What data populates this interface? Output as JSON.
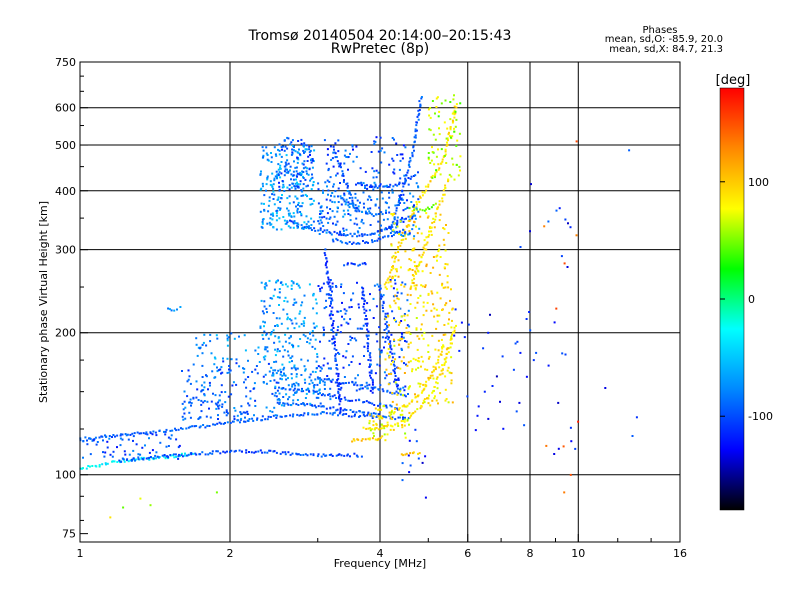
{
  "chart_data": {
    "type": "scatter",
    "title": "Tromsø 20140504 20:14:00–20:15:43",
    "subtitle": "RwPretec (8p)",
    "xlabel": "Frequency [MHz]",
    "ylabel": "Stationary phase Virtual Height [km]",
    "x_scale": "log",
    "y_scale": "log",
    "xlim": [
      1,
      16
    ],
    "ylim": [
      72,
      750
    ],
    "x_ticks": [
      1,
      2,
      4,
      6,
      8,
      10,
      16
    ],
    "x_tick_labels": [
      "1",
      "2",
      "4",
      "6",
      "8",
      "10",
      "16"
    ],
    "x_gridlines": [
      2,
      4,
      6,
      8,
      10
    ],
    "y_ticks": [
      75,
      100,
      200,
      300,
      400,
      500,
      600,
      750
    ],
    "y_tick_labels": [
      "75",
      "100",
      "200",
      "300",
      "400",
      "500",
      "600",
      "750"
    ],
    "y_gridlines": [
      100,
      200,
      300,
      400,
      500,
      600
    ],
    "grid": true,
    "stats": {
      "heading": "Phases",
      "line_o": "mean, sd,O: -85.9, 20.0",
      "line_x": "mean, sd,X: 84.7, 21.3"
    },
    "colorbar": {
      "label": "[deg]",
      "range": [
        -180,
        180
      ],
      "ticks": [
        100,
        0,
        -100
      ],
      "tick_labels": [
        "100",
        "0",
        "-100"
      ],
      "colors": [
        "#ff0000",
        "#ff8800",
        "#ffff00",
        "#00ff00",
        "#00ffff",
        "#0088ff",
        "#0000ff",
        "#000000"
      ]
    },
    "series": [
      {
        "kind": "trace",
        "phase": -95,
        "points": [
          [
            1.0,
            118
          ],
          [
            1.1,
            120
          ],
          [
            1.2,
            121
          ],
          [
            1.35,
            123
          ],
          [
            1.5,
            124
          ],
          [
            1.7,
            126
          ],
          [
            1.9,
            128
          ],
          [
            2.1,
            130
          ],
          [
            2.3,
            131
          ],
          [
            2.5,
            133
          ],
          [
            2.8,
            134
          ],
          [
            3.1,
            135
          ],
          [
            3.4,
            134
          ],
          [
            3.7,
            133
          ],
          [
            4.0,
            132
          ]
        ]
      },
      {
        "kind": "trace",
        "phase": -30,
        "points": [
          [
            1.0,
            103
          ],
          [
            1.1,
            105
          ],
          [
            1.2,
            107
          ],
          [
            1.35,
            108
          ],
          [
            1.5,
            109
          ],
          [
            1.7,
            111
          ]
        ]
      },
      {
        "kind": "trace",
        "phase": -100,
        "points": [
          [
            1.2,
            107
          ],
          [
            1.4,
            109
          ],
          [
            1.6,
            110
          ],
          [
            1.8,
            111
          ],
          [
            2.0,
            112
          ],
          [
            2.3,
            112
          ],
          [
            2.6,
            111
          ],
          [
            2.9,
            110
          ],
          [
            3.2,
            110
          ],
          [
            3.5,
            110
          ],
          [
            3.7,
            110
          ]
        ]
      },
      {
        "kind": "trace",
        "phase": 100,
        "points": [
          [
            3.5,
            118
          ],
          [
            3.7,
            119
          ],
          [
            3.9,
            119
          ],
          [
            4.1,
            120
          ]
        ]
      },
      {
        "kind": "trace",
        "phase": 100,
        "points": [
          [
            4.4,
            110
          ],
          [
            4.55,
            111
          ],
          [
            4.7,
            111
          ],
          [
            4.85,
            110
          ]
        ]
      },
      {
        "kind": "trace",
        "phase": -95,
        "points": [
          [
            2.5,
            142
          ],
          [
            2.8,
            141
          ],
          [
            3.1,
            139
          ],
          [
            3.4,
            137
          ],
          [
            3.7,
            136
          ],
          [
            4.0,
            134
          ],
          [
            4.3,
            132
          ],
          [
            4.6,
            131
          ]
        ]
      },
      {
        "kind": "trace",
        "phase": -100,
        "points": [
          [
            2.6,
            152
          ],
          [
            2.9,
            150
          ],
          [
            3.2,
            147
          ],
          [
            3.5,
            144
          ],
          [
            3.8,
            142
          ],
          [
            4.1,
            140
          ],
          [
            4.4,
            138
          ]
        ]
      },
      {
        "kind": "trace",
        "phase": -95,
        "points": [
          [
            3.0,
            160
          ],
          [
            3.4,
            157
          ],
          [
            3.8,
            154
          ],
          [
            4.2,
            150
          ],
          [
            4.6,
            147
          ]
        ]
      },
      {
        "kind": "trace",
        "phase": 85,
        "points": [
          [
            3.7,
            126
          ],
          [
            3.9,
            125
          ],
          [
            4.2,
            127
          ],
          [
            4.5,
            130
          ],
          [
            4.8,
            138
          ],
          [
            5.1,
            150
          ],
          [
            5.3,
            165
          ],
          [
            5.5,
            185
          ],
          [
            5.7,
            210
          ]
        ]
      },
      {
        "kind": "trace",
        "phase": 90,
        "points": [
          [
            4.2,
            135
          ],
          [
            4.5,
            140
          ],
          [
            4.8,
            148
          ],
          [
            5.0,
            158
          ],
          [
            5.2,
            170
          ],
          [
            5.4,
            190
          ]
        ]
      },
      {
        "kind": "trace",
        "phase": 90,
        "points": [
          [
            4.1,
            250
          ],
          [
            4.2,
            270
          ],
          [
            4.35,
            300
          ],
          [
            4.5,
            330
          ],
          [
            4.65,
            360
          ],
          [
            4.8,
            385
          ],
          [
            5.0,
            410
          ],
          [
            5.2,
            440
          ],
          [
            5.4,
            480
          ],
          [
            5.5,
            520
          ],
          [
            5.6,
            560
          ],
          [
            5.7,
            620
          ]
        ]
      },
      {
        "kind": "trace",
        "phase": 85,
        "points": [
          [
            4.6,
            250
          ],
          [
            4.75,
            270
          ],
          [
            4.9,
            300
          ],
          [
            5.05,
            330
          ],
          [
            5.2,
            360
          ],
          [
            5.35,
            390
          ],
          [
            5.5,
            430
          ]
        ]
      },
      {
        "kind": "trace",
        "phase": 50,
        "points": [
          [
            4.6,
            370
          ],
          [
            4.75,
            365
          ],
          [
            4.9,
            362
          ],
          [
            5.05,
            368
          ],
          [
            5.2,
            380
          ]
        ]
      },
      {
        "kind": "trace",
        "phase": -100,
        "points": [
          [
            2.6,
            345
          ],
          [
            2.8,
            335
          ],
          [
            3.0,
            330
          ],
          [
            3.3,
            325
          ],
          [
            3.6,
            322
          ],
          [
            3.9,
            325
          ],
          [
            4.2,
            335
          ],
          [
            4.5,
            350
          ]
        ]
      },
      {
        "kind": "trace",
        "phase": -95,
        "points": [
          [
            3.2,
            315
          ],
          [
            3.5,
            310
          ],
          [
            3.8,
            312
          ],
          [
            4.1,
            318
          ],
          [
            4.4,
            330
          ]
        ]
      },
      {
        "kind": "trace",
        "phase": -100,
        "points": [
          [
            3.6,
            415
          ],
          [
            3.8,
            410
          ],
          [
            4.0,
            408
          ],
          [
            4.2,
            410
          ],
          [
            4.4,
            415
          ],
          [
            4.6,
            425
          ],
          [
            4.8,
            440
          ]
        ]
      },
      {
        "kind": "trace",
        "phase": -85,
        "points": [
          [
            3.3,
            390
          ],
          [
            3.5,
            375
          ],
          [
            3.7,
            360
          ],
          [
            3.9,
            355
          ],
          [
            4.1,
            360
          ]
        ]
      },
      {
        "kind": "trace",
        "phase": -95,
        "points": [
          [
            3.2,
            500
          ],
          [
            3.3,
            460
          ],
          [
            3.4,
            420
          ],
          [
            3.5,
            385
          ],
          [
            3.6,
            360
          ]
        ]
      },
      {
        "kind": "trace",
        "phase": -95,
        "points": [
          [
            4.2,
            330
          ],
          [
            4.3,
            360
          ],
          [
            4.4,
            390
          ],
          [
            4.5,
            420
          ],
          [
            4.6,
            460
          ],
          [
            4.7,
            510
          ],
          [
            4.75,
            560
          ],
          [
            4.8,
            600
          ],
          [
            4.85,
            640
          ]
        ]
      },
      {
        "kind": "trace",
        "phase": -110,
        "points": [
          [
            3.1,
            300
          ],
          [
            3.12,
            280
          ],
          [
            3.15,
            260
          ],
          [
            3.18,
            240
          ],
          [
            3.2,
            220
          ],
          [
            3.22,
            200
          ],
          [
            3.25,
            185
          ],
          [
            3.28,
            170
          ],
          [
            3.3,
            155
          ],
          [
            3.32,
            145
          ],
          [
            3.34,
            135
          ]
        ]
      },
      {
        "kind": "trace",
        "phase": -110,
        "points": [
          [
            3.7,
            250
          ],
          [
            3.72,
            230
          ],
          [
            3.75,
            215
          ],
          [
            3.78,
            200
          ],
          [
            3.8,
            185
          ],
          [
            3.82,
            170
          ],
          [
            3.85,
            158
          ],
          [
            3.88,
            148
          ]
        ]
      },
      {
        "kind": "trace",
        "phase": -105,
        "points": [
          [
            4.0,
            250
          ],
          [
            4.05,
            230
          ],
          [
            4.1,
            215
          ],
          [
            4.15,
            200
          ],
          [
            4.2,
            185
          ],
          [
            4.25,
            172
          ],
          [
            4.3,
            160
          ],
          [
            4.35,
            150
          ]
        ]
      },
      {
        "kind": "trace",
        "phase": -105,
        "points": [
          [
            3.4,
            280
          ],
          [
            3.6,
            278
          ],
          [
            3.8,
            282
          ]
        ]
      },
      {
        "kind": "trace",
        "phase": -75,
        "points": [
          [
            1.5,
            225
          ],
          [
            1.55,
            224
          ],
          [
            1.6,
            226
          ]
        ]
      },
      {
        "kind": "cloud",
        "phase": -70,
        "x": [
          2.3,
          2.95
        ],
        "y": [
          330,
          500
        ],
        "n": 240
      },
      {
        "kind": "cloud",
        "phase": -95,
        "x": [
          2.5,
          2.95
        ],
        "y": [
          400,
          520
        ],
        "n": 90
      },
      {
        "kind": "cloud",
        "phase": -90,
        "x": [
          3.0,
          4.8
        ],
        "y": [
          320,
          420
        ],
        "n": 220
      },
      {
        "kind": "cloud",
        "phase": -100,
        "x": [
          3.1,
          4.5
        ],
        "y": [
          420,
          520
        ],
        "n": 70
      },
      {
        "kind": "cloud",
        "phase": -70,
        "x": [
          2.3,
          3.0
        ],
        "y": [
          170,
          260
        ],
        "n": 160
      },
      {
        "kind": "cloud",
        "phase": -100,
        "x": [
          3.0,
          4.6
        ],
        "y": [
          150,
          260
        ],
        "n": 200
      },
      {
        "kind": "cloud",
        "phase": -90,
        "x": [
          1.6,
          2.5
        ],
        "y": [
          130,
          175
        ],
        "n": 170
      },
      {
        "kind": "cloud",
        "phase": -75,
        "x": [
          1.7,
          2.4
        ],
        "y": [
          175,
          200
        ],
        "n": 40
      },
      {
        "kind": "cloud",
        "phase": -80,
        "x": [
          2.4,
          3.2
        ],
        "y": [
          140,
          170
        ],
        "n": 120
      },
      {
        "kind": "cloud",
        "phase": -100,
        "x": [
          1.0,
          1.6
        ],
        "y": [
          108,
          122
        ],
        "n": 60
      },
      {
        "kind": "cloud",
        "phase": 90,
        "x": [
          4.1,
          5.6
        ],
        "y": [
          140,
          250
        ],
        "n": 200
      },
      {
        "kind": "cloud",
        "phase": 95,
        "x": [
          4.2,
          5.5
        ],
        "y": [
          250,
          360
        ],
        "n": 110
      },
      {
        "kind": "cloud",
        "phase": 80,
        "x": [
          3.8,
          4.6
        ],
        "y": [
          118,
          140
        ],
        "n": 60
      },
      {
        "kind": "cloud",
        "phase": 60,
        "x": [
          5.0,
          5.8
        ],
        "y": [
          420,
          640
        ],
        "n": 70
      },
      {
        "kind": "cloud",
        "phase": -115,
        "x": [
          4.4,
          5.0
        ],
        "y": [
          88,
          125
        ],
        "n": 12
      },
      {
        "kind": "cloud",
        "phase": -120,
        "x": [
          5.6,
          7.6
        ],
        "y": [
          120,
          240
        ],
        "n": 24
      },
      {
        "kind": "cloud",
        "phase": -115,
        "x": [
          7.6,
          10.0
        ],
        "y": [
          110,
          440
        ],
        "n": 30
      },
      {
        "kind": "cloud",
        "phase": 150,
        "x": [
          8.5,
          10.5
        ],
        "y": [
          90,
          600
        ],
        "n": 10
      },
      {
        "kind": "cloud",
        "phase": 70,
        "x": [
          1.1,
          1.9
        ],
        "y": [
          78,
          100
        ],
        "n": 5
      },
      {
        "kind": "cloud",
        "phase": -110,
        "x": [
          11.0,
          15.0
        ],
        "y": [
          88,
          500
        ],
        "n": 4
      }
    ]
  }
}
